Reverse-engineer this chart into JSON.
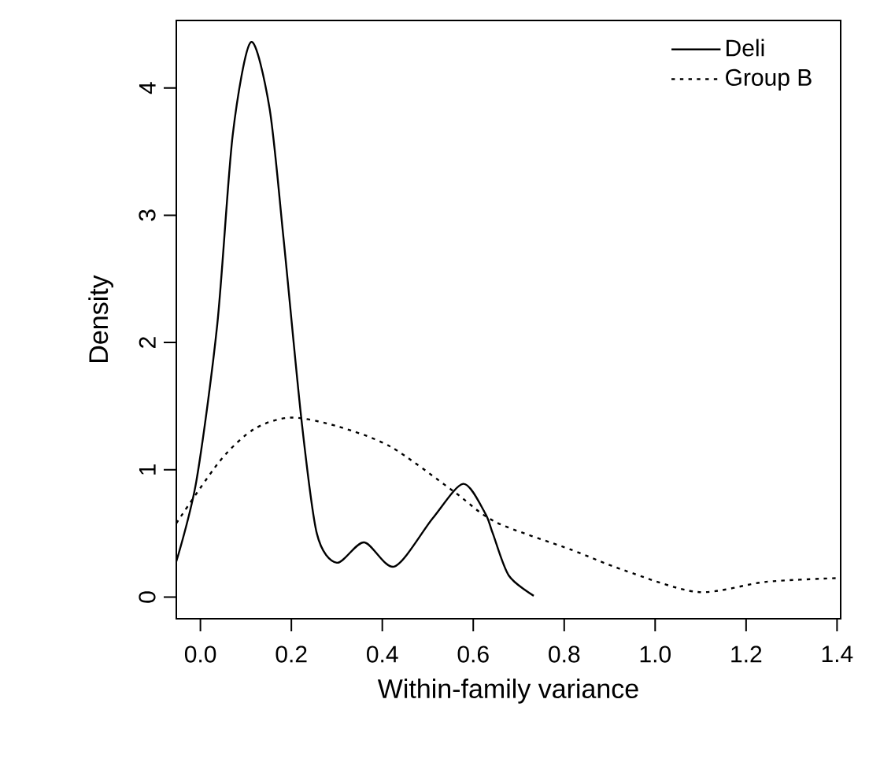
{
  "chart_data": {
    "type": "line",
    "xlabel": "Within-family variance",
    "ylabel": "Density",
    "xlim": [
      -0.053,
      1.408
    ],
    "ylim": [
      -0.17,
      4.53
    ],
    "xticks": [
      {
        "value": 0,
        "label": "0.0"
      },
      {
        "value": 0.2,
        "label": "0.2"
      },
      {
        "value": 0.4,
        "label": "0.4"
      },
      {
        "value": 0.6,
        "label": "0.6"
      },
      {
        "value": 0.8,
        "label": "0.8"
      },
      {
        "value": 1.0,
        "label": "1.0"
      },
      {
        "value": 1.2,
        "label": "1.2"
      },
      {
        "value": 1.4,
        "label": "1.4"
      }
    ],
    "yticks": [
      0,
      1,
      2,
      3,
      4
    ],
    "legend": "top right",
    "grid": false,
    "marker": "none",
    "series": [
      {
        "name": "Deli",
        "color": "#000000",
        "line_style": "solid",
        "x": [
          -0.053,
          -0.009,
          0.037,
          0.071,
          0.111,
          0.152,
          0.183,
          0.222,
          0.256,
          0.3,
          0.36,
          0.427,
          0.511,
          0.578,
          0.626,
          0.643,
          0.678,
          0.733
        ],
        "values": [
          0.28,
          0.91,
          2.14,
          3.63,
          4.36,
          3.84,
          2.81,
          1.4,
          0.5,
          0.27,
          0.43,
          0.24,
          0.62,
          0.89,
          0.66,
          0.5,
          0.17,
          0.01
        ]
      },
      {
        "name": "Group B",
        "color": "#000000",
        "line_style": "dotted",
        "x": [
          -0.053,
          0.043,
          0.118,
          0.199,
          0.303,
          0.419,
          0.557,
          0.649,
          0.817,
          0.932,
          1.094,
          1.244,
          1.407
        ],
        "values": [
          0.58,
          1.07,
          1.32,
          1.41,
          1.34,
          1.18,
          0.83,
          0.59,
          0.37,
          0.21,
          0.04,
          0.12,
          0.15
        ]
      }
    ]
  }
}
